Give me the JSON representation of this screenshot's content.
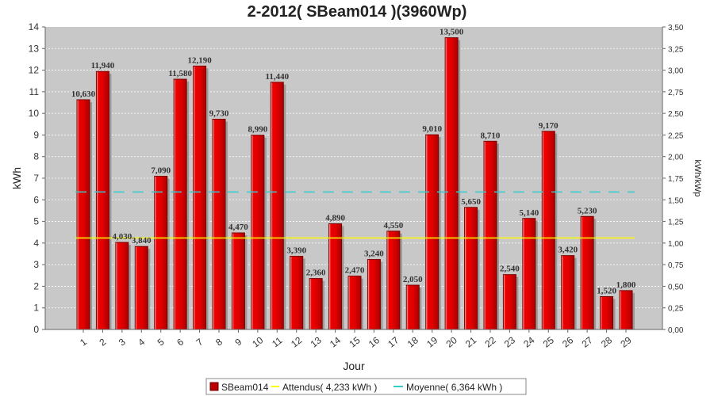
{
  "chart_data": {
    "type": "bar",
    "title": "2-2012( SBeam014 )(3960Wp)",
    "xlabel": "Jour",
    "ylabel": "kWh",
    "ylabel_right": "kWh/kWp",
    "ylim": [
      0,
      14
    ],
    "ylim_right": [
      0,
      3.5
    ],
    "yticks": [
      "0",
      "1",
      "2",
      "3",
      "4",
      "5",
      "6",
      "7",
      "8",
      "9",
      "10",
      "11",
      "12",
      "13",
      "14"
    ],
    "yticks_right": [
      "0,00",
      "0,25",
      "0,50",
      "0,75",
      "1,00",
      "1,25",
      "1,50",
      "1,75",
      "2,00",
      "2,25",
      "2,50",
      "2,75",
      "3,00",
      "3,25",
      "3,50"
    ],
    "grid": true,
    "categories": [
      "1",
      "2",
      "3",
      "4",
      "5",
      "6",
      "7",
      "8",
      "9",
      "10",
      "11",
      "12",
      "13",
      "14",
      "15",
      "16",
      "17",
      "18",
      "19",
      "20",
      "21",
      "22",
      "23",
      "24",
      "25",
      "26",
      "27",
      "28",
      "29"
    ],
    "series": [
      {
        "name": "SBeam014",
        "color": "#dd0000",
        "values": [
          10.63,
          11.94,
          4.03,
          3.84,
          7.09,
          11.58,
          12.19,
          9.73,
          4.47,
          8.99,
          11.44,
          3.39,
          2.36,
          4.89,
          2.47,
          3.24,
          4.55,
          2.05,
          9.01,
          13.5,
          5.65,
          8.71,
          2.54,
          5.14,
          9.17,
          3.42,
          5.23,
          1.52,
          1.8
        ],
        "labels": [
          "10,630",
          "11,940",
          "4,030",
          "3,840",
          "7,090",
          "11,580",
          "12,190",
          "9,730",
          "4,470",
          "8,990",
          "11,440",
          "3,390",
          "2,360",
          "4,890",
          "2,470",
          "3,240",
          "4,550",
          "2,050",
          "9,010",
          "13,500",
          "5,650",
          "8,710",
          "2,540",
          "5,140",
          "9,170",
          "3,420",
          "5,230",
          "1,520",
          "1,800"
        ]
      }
    ],
    "reference_lines": [
      {
        "name": "Attendus( 4,233 kWh )",
        "value": 4.233,
        "color": "#ffff00",
        "style": "solid"
      },
      {
        "name": "Moyenne( 6,364 kWh )",
        "value": 6.364,
        "color": "#33cccc",
        "style": "dashed"
      }
    ],
    "legend": {
      "placement": "bottom",
      "items": [
        "SBeam014",
        "Attendus( 4,233 kWh )",
        "Moyenne( 6,364 kWh )"
      ]
    }
  }
}
